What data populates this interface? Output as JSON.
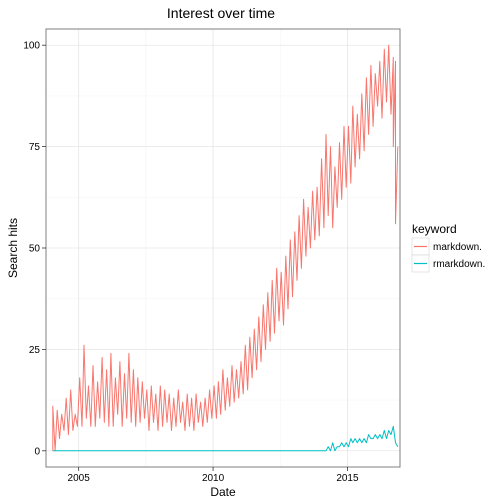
{
  "chart_data": {
    "type": "line",
    "title": "Interest over time",
    "xlabel": "Date",
    "ylabel": "Search hits",
    "xlim": [
      "2003-10-15",
      "2016-12-15"
    ],
    "ylim": [
      -4,
      104
    ],
    "x_ticks": [
      {
        "date": "2005-01-01",
        "label": "2005"
      },
      {
        "date": "2010-01-01",
        "label": "2010"
      },
      {
        "date": "2015-01-01",
        "label": "2015"
      }
    ],
    "y_ticks": [
      0,
      25,
      50,
      75,
      100
    ],
    "grid": true,
    "legend": {
      "title": "keyword",
      "position": "right"
    },
    "series": [
      {
        "name": "markdown.",
        "color": "#F8766D",
        "points": [
          [
            "2004-01",
            0
          ],
          [
            "2004-01",
            11
          ],
          [
            "2004-02",
            0
          ],
          [
            "2004-03",
            10
          ],
          [
            "2004-04",
            3
          ],
          [
            "2004-05",
            9
          ],
          [
            "2004-06",
            5
          ],
          [
            "2004-07",
            13
          ],
          [
            "2004-08",
            4
          ],
          [
            "2004-09",
            15
          ],
          [
            "2004-10",
            5
          ],
          [
            "2004-11",
            9
          ],
          [
            "2004-12",
            6
          ],
          [
            "2005-01",
            18
          ],
          [
            "2005-02",
            6
          ],
          [
            "2005-03",
            26
          ],
          [
            "2005-04",
            8
          ],
          [
            "2005-05",
            16
          ],
          [
            "2005-06",
            6
          ],
          [
            "2005-07",
            21
          ],
          [
            "2005-08",
            6
          ],
          [
            "2005-09",
            17
          ],
          [
            "2005-10",
            8
          ],
          [
            "2005-11",
            23
          ],
          [
            "2005-12",
            7
          ],
          [
            "2006-01",
            20
          ],
          [
            "2006-02",
            6
          ],
          [
            "2006-03",
            24
          ],
          [
            "2006-04",
            6
          ],
          [
            "2006-05",
            18
          ],
          [
            "2006-06",
            9
          ],
          [
            "2006-07",
            22
          ],
          [
            "2006-08",
            6
          ],
          [
            "2006-09",
            19
          ],
          [
            "2006-10",
            8
          ],
          [
            "2006-11",
            24
          ],
          [
            "2006-12",
            7
          ],
          [
            "2007-01",
            20
          ],
          [
            "2007-02",
            6
          ],
          [
            "2007-03",
            18
          ],
          [
            "2007-04",
            7
          ],
          [
            "2007-05",
            17
          ],
          [
            "2007-06",
            8
          ],
          [
            "2007-07",
            15
          ],
          [
            "2007-08",
            5
          ],
          [
            "2007-09",
            16
          ],
          [
            "2007-10",
            7
          ],
          [
            "2007-11",
            14
          ],
          [
            "2007-12",
            5
          ],
          [
            "2008-01",
            16
          ],
          [
            "2008-02",
            6
          ],
          [
            "2008-03",
            15
          ],
          [
            "2008-04",
            7
          ],
          [
            "2008-05",
            14
          ],
          [
            "2008-06",
            5
          ],
          [
            "2008-07",
            13
          ],
          [
            "2008-08",
            6
          ],
          [
            "2008-09",
            15
          ],
          [
            "2008-10",
            7
          ],
          [
            "2008-11",
            12
          ],
          [
            "2008-12",
            5
          ],
          [
            "2009-01",
            14
          ],
          [
            "2009-02",
            6
          ],
          [
            "2009-03",
            13
          ],
          [
            "2009-04",
            5
          ],
          [
            "2009-05",
            14
          ],
          [
            "2009-06",
            7
          ],
          [
            "2009-07",
            12
          ],
          [
            "2009-08",
            6
          ],
          [
            "2009-09",
            13
          ],
          [
            "2009-10",
            7
          ],
          [
            "2009-11",
            15
          ],
          [
            "2009-12",
            8
          ],
          [
            "2010-01",
            16
          ],
          [
            "2010-02",
            8
          ],
          [
            "2010-03",
            17
          ],
          [
            "2010-04",
            9
          ],
          [
            "2010-05",
            20
          ],
          [
            "2010-06",
            10
          ],
          [
            "2010-07",
            18
          ],
          [
            "2010-08",
            11
          ],
          [
            "2010-09",
            21
          ],
          [
            "2010-10",
            12
          ],
          [
            "2010-11",
            20
          ],
          [
            "2010-12",
            13
          ],
          [
            "2011-01",
            22
          ],
          [
            "2011-02",
            14
          ],
          [
            "2011-03",
            26
          ],
          [
            "2011-04",
            15
          ],
          [
            "2011-05",
            28
          ],
          [
            "2011-06",
            18
          ],
          [
            "2011-07",
            30
          ],
          [
            "2011-08",
            20
          ],
          [
            "2011-09",
            33
          ],
          [
            "2011-10",
            22
          ],
          [
            "2011-11",
            36
          ],
          [
            "2011-12",
            25
          ],
          [
            "2012-01",
            39
          ],
          [
            "2012-02",
            27
          ],
          [
            "2012-03",
            42
          ],
          [
            "2012-04",
            29
          ],
          [
            "2012-05",
            45
          ],
          [
            "2012-06",
            32
          ],
          [
            "2012-07",
            44
          ],
          [
            "2012-08",
            31
          ],
          [
            "2012-09",
            48
          ],
          [
            "2012-10",
            35
          ],
          [
            "2012-11",
            52
          ],
          [
            "2012-12",
            38
          ],
          [
            "2013-01",
            54
          ],
          [
            "2013-02",
            42
          ],
          [
            "2013-03",
            58
          ],
          [
            "2013-04",
            45
          ],
          [
            "2013-05",
            62
          ],
          [
            "2013-06",
            48
          ],
          [
            "2013-07",
            60
          ],
          [
            "2013-08",
            50
          ],
          [
            "2013-09",
            64
          ],
          [
            "2013-10",
            52
          ],
          [
            "2013-11",
            65
          ],
          [
            "2013-12",
            53
          ],
          [
            "2014-01",
            72
          ],
          [
            "2014-02",
            55
          ],
          [
            "2014-03",
            78
          ],
          [
            "2014-04",
            58
          ],
          [
            "2014-05",
            75
          ],
          [
            "2014-06",
            55
          ],
          [
            "2014-07",
            70
          ],
          [
            "2014-08",
            60
          ],
          [
            "2014-09",
            76
          ],
          [
            "2014-10",
            62
          ],
          [
            "2014-11",
            80
          ],
          [
            "2014-12",
            65
          ],
          [
            "2015-01",
            80
          ],
          [
            "2015-02",
            66
          ],
          [
            "2015-03",
            85
          ],
          [
            "2015-04",
            70
          ],
          [
            "2015-05",
            83
          ],
          [
            "2015-06",
            72
          ],
          [
            "2015-07",
            88
          ],
          [
            "2015-08",
            74
          ],
          [
            "2015-09",
            92
          ],
          [
            "2015-10",
            78
          ],
          [
            "2015-11",
            95
          ],
          [
            "2015-12",
            80
          ],
          [
            "2016-01",
            93
          ],
          [
            "2016-02",
            85
          ],
          [
            "2016-03",
            96
          ],
          [
            "2016-04",
            82
          ],
          [
            "2016-05",
            99
          ],
          [
            "2016-06",
            86
          ],
          [
            "2016-07",
            100
          ],
          [
            "2016-08",
            83
          ],
          [
            "2016-09",
            97
          ],
          [
            "2016-09",
            75
          ],
          [
            "2016-10",
            96
          ],
          [
            "2016-10",
            56
          ],
          [
            "2016-11",
            75
          ]
        ]
      },
      {
        "name": "rmarkdown.",
        "color": "#00BFC4",
        "points": [
          [
            "2004-01",
            0
          ],
          [
            "2014-03",
            0
          ],
          [
            "2014-04",
            1
          ],
          [
            "2014-05",
            0
          ],
          [
            "2014-06",
            2
          ],
          [
            "2014-07",
            0
          ],
          [
            "2014-08",
            1
          ],
          [
            "2014-09",
            1
          ],
          [
            "2014-10",
            2
          ],
          [
            "2014-11",
            1
          ],
          [
            "2014-12",
            2
          ],
          [
            "2015-01",
            1
          ],
          [
            "2015-02",
            3
          ],
          [
            "2015-03",
            2
          ],
          [
            "2015-04",
            3
          ],
          [
            "2015-05",
            2
          ],
          [
            "2015-06",
            3
          ],
          [
            "2015-07",
            2
          ],
          [
            "2015-08",
            3
          ],
          [
            "2015-09",
            2
          ],
          [
            "2015-10",
            4
          ],
          [
            "2015-11",
            3
          ],
          [
            "2015-12",
            3
          ],
          [
            "2016-01",
            4
          ],
          [
            "2016-02",
            3
          ],
          [
            "2016-03",
            4
          ],
          [
            "2016-04",
            3
          ],
          [
            "2016-05",
            5
          ],
          [
            "2016-06",
            3
          ],
          [
            "2016-07",
            5
          ],
          [
            "2016-08",
            4
          ],
          [
            "2016-09",
            6
          ],
          [
            "2016-10",
            2
          ],
          [
            "2016-11",
            1
          ]
        ]
      }
    ]
  }
}
